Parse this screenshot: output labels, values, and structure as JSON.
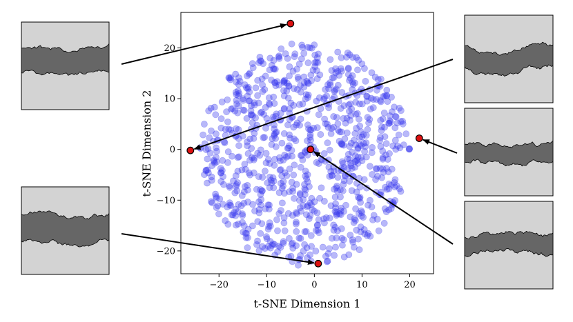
{
  "chart_data": {
    "type": "scatter",
    "xlabel": "t-SNE Dimension 1",
    "ylabel": "t-SNE Dimension 2",
    "xlim": [
      -28,
      25
    ],
    "ylim": [
      -24.5,
      27
    ],
    "xticks": [
      -20,
      -10,
      0,
      10,
      20
    ],
    "yticks": [
      -20,
      -10,
      0,
      10,
      20
    ],
    "xtick_labels": [
      "−20",
      "−10",
      "0",
      "10",
      "20"
    ],
    "ytick_labels": [
      "−20",
      "−10",
      "0",
      "10",
      "20"
    ],
    "grid": false,
    "cloud": {
      "description": "approximately 900 semi-transparent blue points in a roughly circular cloud",
      "count": 900,
      "center": [
        -2,
        -1
      ],
      "radius_x": 22,
      "radius_y": 22,
      "seed": 7
    },
    "highlighted_points": [
      {
        "id": "top",
        "x": -5,
        "y": 24.8
      },
      {
        "id": "left",
        "x": -26,
        "y": -0.2
      },
      {
        "id": "center",
        "x": -0.8,
        "y": 0
      },
      {
        "id": "right",
        "x": 22,
        "y": 2.2
      },
      {
        "id": "bottom",
        "x": 0.8,
        "y": -22.5
      }
    ],
    "colors": {
      "cloud": "#3333ee",
      "highlight_fill": "#dd1111",
      "highlight_edge": "#000000",
      "profile_bg": "#d3d3d3",
      "profile_band": "#666666",
      "arrow": "#000000"
    }
  },
  "insets": [
    {
      "id": "inset-left-top",
      "side": "left",
      "links_to": "top",
      "band_center": 0.48,
      "band_half": 0.14,
      "seed": 11
    },
    {
      "id": "inset-left-bottom",
      "side": "left",
      "links_to": "bottom",
      "band_center": 0.5,
      "band_half": 0.15,
      "seed": 23
    },
    {
      "id": "inset-right-1",
      "side": "right",
      "links_to": "left",
      "band_center": 0.5,
      "band_half": 0.12,
      "seed": 31
    },
    {
      "id": "inset-right-2",
      "side": "right",
      "links_to": "right",
      "band_center": 0.52,
      "band_half": 0.11,
      "seed": 47
    },
    {
      "id": "inset-right-3",
      "side": "right",
      "links_to": "center",
      "band_center": 0.5,
      "band_half": 0.11,
      "seed": 59
    }
  ]
}
